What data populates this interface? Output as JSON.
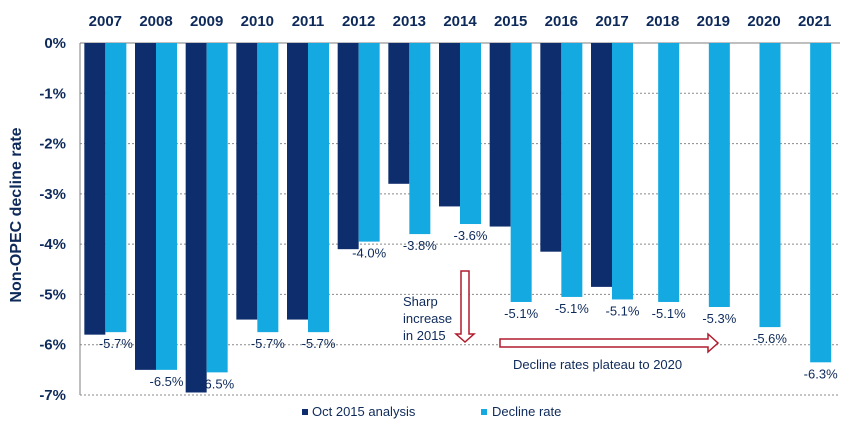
{
  "chart_data": {
    "type": "bar",
    "categories": [
      "2007",
      "2008",
      "2009",
      "2010",
      "2011",
      "2012",
      "2013",
      "2014",
      "2015",
      "2016",
      "2017",
      "2018",
      "2019",
      "2020",
      "2021"
    ],
    "series": [
      {
        "name": "Oct 2015 analysis",
        "color": "#0e2d6d",
        "values": [
          -5.8,
          -6.5,
          -6.95,
          -5.5,
          -5.5,
          -4.1,
          -2.8,
          -3.25,
          -3.65,
          -4.15,
          -4.85,
          null,
          null,
          null,
          null
        ]
      },
      {
        "name": "Decline rate",
        "color": "#15a9e1",
        "values": [
          -5.75,
          -6.5,
          -6.55,
          -5.75,
          -5.75,
          -3.95,
          -3.8,
          -3.6,
          -5.15,
          -5.05,
          -5.1,
          -5.15,
          -5.25,
          -5.65,
          -6.35
        ]
      }
    ],
    "data_labels": [
      "-5.7%",
      "-6.5%",
      "-6.5%",
      "-5.7%",
      "-5.7%",
      "-4.0%",
      "-3.8%",
      "-3.6%",
      "-5.1%",
      "-5.1%",
      "-5.1%",
      "-5.1%",
      "-5.3%",
      "-5.6%",
      "-6.3%"
    ],
    "ylabel": "Non-OPEC  decline rate",
    "ylim": [
      -7,
      0
    ],
    "yticks": [
      0,
      -1,
      -2,
      -3,
      -4,
      -5,
      -6,
      -7
    ],
    "ytick_labels": [
      "0%",
      "-1%",
      "-2%",
      "-3%",
      "-4%",
      "-5%",
      "-6%",
      "-7%"
    ],
    "x_axis_position": "top",
    "grid": true,
    "legend": "bottom",
    "annotations": [
      {
        "text_lines": [
          "Sharp",
          "increase",
          "in 2015"
        ],
        "arrow": "down",
        "color": "#b01c2e"
      },
      {
        "text": "Decline rates plateau to 2020",
        "arrow": "right",
        "color": "#b01c2e"
      }
    ]
  }
}
